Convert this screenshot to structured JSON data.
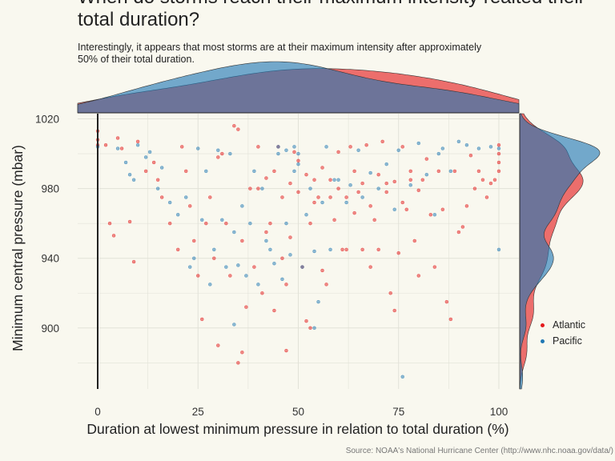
{
  "chart_data": {
    "type": "scatter",
    "title": "When do storms reach their maximum intensity realted their total duration?",
    "subtitle": "Interestingly, it appears that most storms are at their maximum intensity after approximately 50% of their total duration.",
    "caption": "Source: NOAA's National Hurricane Center (http://www.nhc.noaa.gov/data/)",
    "xlabel": "Duration at lowest minimum pressure in relation to total duration (%)",
    "ylabel": "Minimum central pressure (mbar)",
    "xlim": [
      -5,
      105
    ],
    "ylim": [
      865,
      1023
    ],
    "x_ticks": [
      0,
      25,
      50,
      75,
      100
    ],
    "y_ticks": [
      900,
      940,
      980,
      1020
    ],
    "grid": true,
    "legend_position": "right",
    "series": [
      {
        "name": "Atlantic",
        "color": "#e41a1c",
        "points": [
          [
            0,
            1005
          ],
          [
            0,
            1008
          ],
          [
            0,
            1013
          ],
          [
            2,
            1005
          ],
          [
            3,
            960
          ],
          [
            4,
            953
          ],
          [
            5,
            1009
          ],
          [
            6,
            1003
          ],
          [
            8,
            961
          ],
          [
            9,
            938
          ],
          [
            10,
            1007
          ],
          [
            12,
            990
          ],
          [
            14,
            995
          ],
          [
            15,
            985
          ],
          [
            16,
            975
          ],
          [
            18,
            960
          ],
          [
            20,
            945
          ],
          [
            21,
            1004
          ],
          [
            22,
            990
          ],
          [
            23,
            970
          ],
          [
            24,
            950
          ],
          [
            25,
            930
          ],
          [
            26,
            905
          ],
          [
            27,
            960
          ],
          [
            28,
            975
          ],
          [
            29,
            940
          ],
          [
            30,
            998
          ],
          [
            31,
            1000
          ],
          [
            32,
            960
          ],
          [
            33,
            930
          ],
          [
            34,
            1016
          ],
          [
            35,
            1014
          ],
          [
            36,
            950
          ],
          [
            37,
            912
          ],
          [
            38,
            980
          ],
          [
            39,
            935
          ],
          [
            40,
            1004
          ],
          [
            41,
            920
          ],
          [
            42,
            955
          ],
          [
            43,
            960
          ],
          [
            44,
            910
          ],
          [
            45,
            1004
          ],
          [
            46,
            940
          ],
          [
            47,
            925
          ],
          [
            48,
            952
          ],
          [
            49,
            1001
          ],
          [
            50,
            996
          ],
          [
            51,
            935
          ],
          [
            52,
            904
          ],
          [
            53,
            960
          ],
          [
            54,
            985
          ],
          [
            55,
            975
          ],
          [
            56,
            933
          ],
          [
            57,
            925
          ],
          [
            58,
            975
          ],
          [
            59,
            962
          ],
          [
            60,
            1001
          ],
          [
            61,
            945
          ],
          [
            62,
            945
          ],
          [
            63,
            1004
          ],
          [
            64,
            966
          ],
          [
            65,
            978
          ],
          [
            66,
            945
          ],
          [
            67,
            1005
          ],
          [
            68,
            935
          ],
          [
            69,
            962
          ],
          [
            70,
            945
          ],
          [
            71,
            1007
          ],
          [
            72,
            983
          ],
          [
            73,
            920
          ],
          [
            74,
            910
          ],
          [
            75,
            943
          ],
          [
            76,
            1004
          ],
          [
            77,
            968
          ],
          [
            78,
            985
          ],
          [
            79,
            950
          ],
          [
            80,
            930
          ],
          [
            81,
            985
          ],
          [
            82,
            997
          ],
          [
            83,
            965
          ],
          [
            84,
            935
          ],
          [
            85,
            990
          ],
          [
            86,
            968
          ],
          [
            87,
            915
          ],
          [
            88,
            905
          ],
          [
            89,
            990
          ],
          [
            90,
            955
          ],
          [
            91,
            958
          ],
          [
            92,
            970
          ],
          [
            93,
            999
          ],
          [
            94,
            980
          ],
          [
            95,
            990
          ],
          [
            96,
            985
          ],
          [
            97,
            975
          ],
          [
            98,
            983
          ],
          [
            99,
            985
          ],
          [
            100,
            1005
          ],
          [
            100,
            1000
          ],
          [
            100,
            995
          ],
          [
            100,
            990
          ],
          [
            40,
            980
          ],
          [
            42,
            986
          ],
          [
            44,
            990
          ],
          [
            46,
            975
          ],
          [
            48,
            983
          ],
          [
            50,
            978
          ],
          [
            52,
            988
          ],
          [
            54,
            972
          ],
          [
            56,
            992
          ],
          [
            58,
            985
          ],
          [
            60,
            980
          ],
          [
            62,
            975
          ],
          [
            64,
            990
          ],
          [
            66,
            983
          ],
          [
            68,
            970
          ],
          [
            70,
            988
          ],
          [
            72,
            978
          ],
          [
            74,
            984
          ],
          [
            76,
            972
          ],
          [
            78,
            990
          ],
          [
            80,
            979
          ],
          [
            36,
            886
          ],
          [
            35,
            880
          ],
          [
            47,
            887
          ],
          [
            53,
            900
          ],
          [
            30,
            890
          ]
        ]
      },
      {
        "name": "Pacific",
        "color": "#1f78b4",
        "points": [
          [
            0,
            1004
          ],
          [
            5,
            1003
          ],
          [
            7,
            995
          ],
          [
            8,
            988
          ],
          [
            9,
            985
          ],
          [
            10,
            1005
          ],
          [
            12,
            998
          ],
          [
            13,
            1001
          ],
          [
            15,
            980
          ],
          [
            16,
            992
          ],
          [
            18,
            972
          ],
          [
            20,
            965
          ],
          [
            22,
            975
          ],
          [
            23,
            935
          ],
          [
            24,
            940
          ],
          [
            25,
            1003
          ],
          [
            26,
            962
          ],
          [
            27,
            990
          ],
          [
            28,
            925
          ],
          [
            29,
            945
          ],
          [
            30,
            1002
          ],
          [
            31,
            962
          ],
          [
            32,
            935
          ],
          [
            33,
            1000
          ],
          [
            34,
            955
          ],
          [
            35,
            936
          ],
          [
            36,
            970
          ],
          [
            37,
            930
          ],
          [
            38,
            960
          ],
          [
            39,
            990
          ],
          [
            40,
            925
          ],
          [
            41,
            980
          ],
          [
            42,
            950
          ],
          [
            43,
            945
          ],
          [
            44,
            937
          ],
          [
            45,
            1000
          ],
          [
            46,
            928
          ],
          [
            47,
            960
          ],
          [
            48,
            942
          ],
          [
            49,
            990
          ],
          [
            50,
            1000
          ],
          [
            51,
            935
          ],
          [
            52,
            965
          ],
          [
            53,
            980
          ],
          [
            54,
            944
          ],
          [
            55,
            915
          ],
          [
            56,
            972
          ],
          [
            57,
            1004
          ],
          [
            58,
            945
          ],
          [
            59,
            985
          ],
          [
            60,
            985
          ],
          [
            62,
            972
          ],
          [
            63,
            982
          ],
          [
            65,
            1002
          ],
          [
            66,
            975
          ],
          [
            68,
            989
          ],
          [
            70,
            980
          ],
          [
            72,
            994
          ],
          [
            74,
            968
          ],
          [
            75,
            1002
          ],
          [
            76,
            872
          ],
          [
            78,
            982
          ],
          [
            80,
            1006
          ],
          [
            82,
            988
          ],
          [
            84,
            965
          ],
          [
            85,
            1000
          ],
          [
            86,
            1003
          ],
          [
            88,
            990
          ],
          [
            90,
            1007
          ],
          [
            92,
            1005
          ],
          [
            95,
            1003
          ],
          [
            98,
            1004
          ],
          [
            100,
            1003
          ],
          [
            100,
            945
          ],
          [
            34,
            902
          ],
          [
            54,
            900
          ],
          [
            45,
            1004
          ],
          [
            47,
            1002
          ],
          [
            49,
            1004
          ],
          [
            50,
            994
          ]
        ]
      }
    ]
  }
}
